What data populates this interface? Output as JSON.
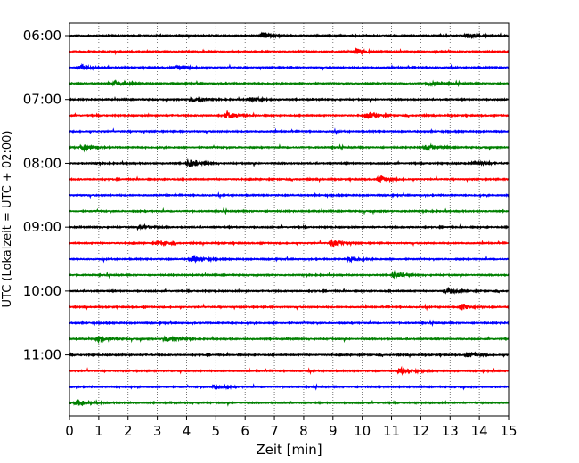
{
  "chart_data": {
    "type": "line",
    "subtype": "helicorder",
    "xlabel": "Zeit  [min]",
    "ylabel": "UTC (Lokalzeit = UTC + 02:00)",
    "xlim": [
      0,
      15
    ],
    "x_ticks": [
      0,
      1,
      2,
      3,
      4,
      5,
      6,
      7,
      8,
      9,
      10,
      11,
      12,
      13,
      14,
      15
    ],
    "y_tick_labels": [
      "06:00",
      "07:00",
      "08:00",
      "09:00",
      "10:00",
      "11:00"
    ],
    "y_tick_rows": [
      0,
      4,
      8,
      12,
      16,
      20
    ],
    "row_minutes": 15,
    "row_count": 24,
    "start_time": "06:00",
    "grid": "vertical dotted at each minute",
    "trace_colors": [
      "#000000",
      "#ff0000",
      "#0000ff",
      "#008000"
    ],
    "events": [
      {
        "row": 0,
        "minute": 6.6,
        "amp": 0.35
      },
      {
        "row": 0,
        "minute": 13.6,
        "amp": 0.3
      },
      {
        "row": 1,
        "minute": 9.8,
        "amp": 0.3
      },
      {
        "row": 2,
        "minute": 0.4,
        "amp": 0.3
      },
      {
        "row": 2,
        "minute": 3.7,
        "amp": 0.2
      },
      {
        "row": 3,
        "minute": 1.6,
        "amp": 0.3
      },
      {
        "row": 3,
        "minute": 12.3,
        "amp": 0.2
      },
      {
        "row": 4,
        "minute": 4.2,
        "amp": 0.3
      },
      {
        "row": 4,
        "minute": 6.2,
        "amp": 0.3
      },
      {
        "row": 5,
        "minute": 5.4,
        "amp": 0.4
      },
      {
        "row": 5,
        "minute": 10.2,
        "amp": 0.3
      },
      {
        "row": 7,
        "minute": 0.5,
        "amp": 0.3
      },
      {
        "row": 7,
        "minute": 12.2,
        "amp": 0.3
      },
      {
        "row": 8,
        "minute": 4.1,
        "amp": 0.45
      },
      {
        "row": 8,
        "minute": 13.9,
        "amp": 0.25
      },
      {
        "row": 9,
        "minute": 10.6,
        "amp": 0.3
      },
      {
        "row": 12,
        "minute": 2.5,
        "amp": 0.2
      },
      {
        "row": 13,
        "minute": 3.0,
        "amp": 0.25
      },
      {
        "row": 13,
        "minute": 9.0,
        "amp": 0.35
      },
      {
        "row": 14,
        "minute": 4.2,
        "amp": 0.35
      },
      {
        "row": 14,
        "minute": 9.6,
        "amp": 0.25
      },
      {
        "row": 15,
        "minute": 11.1,
        "amp": 0.3
      },
      {
        "row": 16,
        "minute": 12.9,
        "amp": 0.3
      },
      {
        "row": 17,
        "minute": 13.4,
        "amp": 0.35
      },
      {
        "row": 19,
        "minute": 1.0,
        "amp": 0.3
      },
      {
        "row": 19,
        "minute": 3.3,
        "amp": 0.35
      },
      {
        "row": 20,
        "minute": 13.6,
        "amp": 0.25
      },
      {
        "row": 21,
        "minute": 11.3,
        "amp": 0.35
      },
      {
        "row": 22,
        "minute": 5.0,
        "amp": 0.2
      },
      {
        "row": 23,
        "minute": 0.3,
        "amp": 0.35
      }
    ]
  }
}
